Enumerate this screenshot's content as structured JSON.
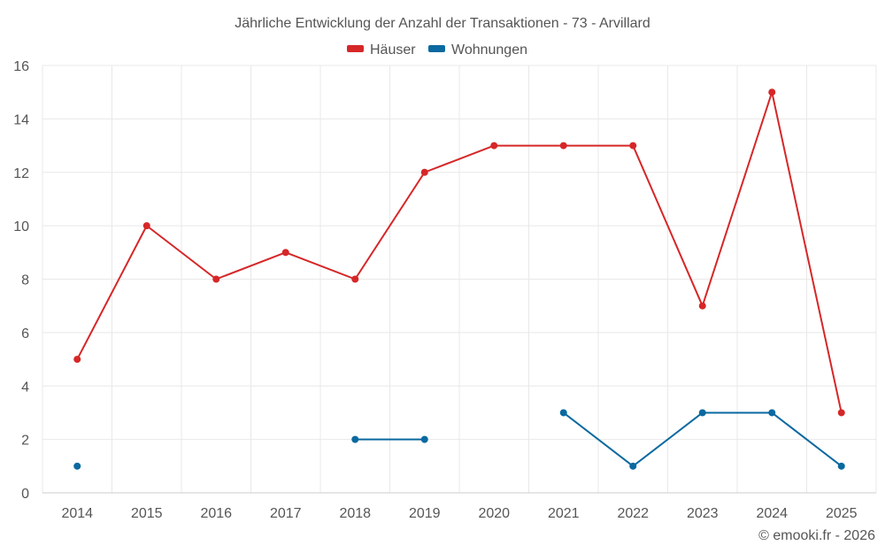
{
  "chart_data": {
    "type": "line",
    "title": "Jährliche Entwicklung der Anzahl der Transaktionen - 73 - Arvillard",
    "categories": [
      "2014",
      "2015",
      "2016",
      "2017",
      "2018",
      "2019",
      "2020",
      "2021",
      "2022",
      "2023",
      "2024",
      "2025"
    ],
    "series": [
      {
        "name": "Häuser",
        "color": "#d62728",
        "values": [
          5,
          10,
          8,
          9,
          8,
          12,
          13,
          13,
          13,
          7,
          15,
          3
        ]
      },
      {
        "name": "Wohnungen",
        "color": "#0a69a0",
        "values": [
          1,
          null,
          null,
          null,
          2,
          2,
          null,
          3,
          1,
          3,
          3,
          1
        ]
      }
    ],
    "ylim": [
      0,
      16
    ],
    "yticks": [
      "0",
      "2",
      "4",
      "6",
      "8",
      "10",
      "12",
      "14",
      "16"
    ],
    "xlabel": "",
    "ylabel": "",
    "grid": true,
    "legend_position": "top-center"
  },
  "credit": "© emooki.fr - 2026"
}
